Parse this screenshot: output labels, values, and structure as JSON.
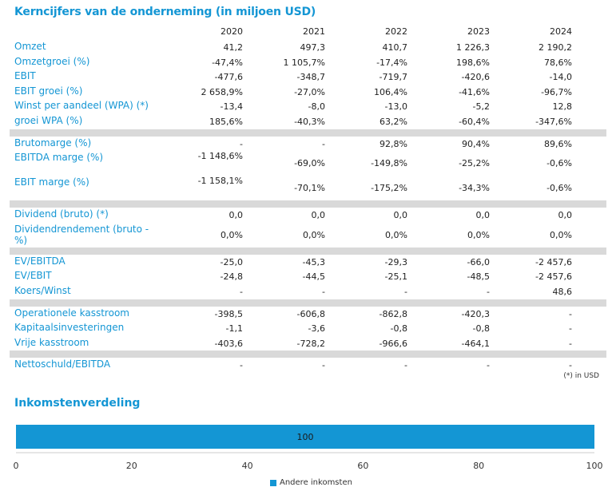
{
  "title": "Kerncijfers van de onderneming (in miljoen USD)",
  "years": [
    "2020",
    "2021",
    "2022",
    "2023",
    "2024"
  ],
  "groups": [
    {
      "rows": [
        {
          "label": "Omzet",
          "values": [
            "41,2",
            "497,3",
            "410,7",
            "1 226,3",
            "2 190,2"
          ]
        },
        {
          "label": "Omzetgroei (%)",
          "values": [
            "-47,4%",
            "1 105,7%",
            "-17,4%",
            "198,6%",
            "78,6%"
          ]
        },
        {
          "label": "EBIT",
          "values": [
            "-477,6",
            "-348,7",
            "-719,7",
            "-420,6",
            "-14,0"
          ]
        },
        {
          "label": "EBIT groei (%)",
          "values": [
            "2 658,9%",
            "-27,0%",
            "106,4%",
            "-41,6%",
            "-96,7%"
          ]
        },
        {
          "label": "Winst per aandeel (WPA) (*)",
          "values": [
            "-13,4",
            "-8,0",
            "-13,0",
            "-5,2",
            "12,8"
          ]
        },
        {
          "label": "groei WPA (%)",
          "values": [
            "185,6%",
            "-40,3%",
            "63,2%",
            "-60,4%",
            "-347,6%"
          ]
        }
      ]
    },
    {
      "rows": [
        {
          "label": "Brutomarge (%)",
          "values": [
            "-",
            "-",
            "92,8%",
            "90,4%",
            "89,6%"
          ]
        },
        {
          "label": "EBITDA marge (%)",
          "tall": true,
          "values": [
            "-1 148,6%",
            "-69,0%",
            "-149,8%",
            "-25,2%",
            "-0,6%"
          ]
        },
        {
          "label": "EBIT marge (%)",
          "tall": true,
          "values": [
            "-1 158,1%",
            "-70,1%",
            "-175,2%",
            "-34,3%",
            "-0,6%"
          ]
        }
      ]
    },
    {
      "rows": [
        {
          "label": "Dividend (bruto) (*)",
          "values": [
            "0,0",
            "0,0",
            "0,0",
            "0,0",
            "0,0"
          ]
        },
        {
          "label": "Dividendrendement (bruto - %)",
          "tall": true,
          "values": [
            "0,0%",
            "0,0%",
            "0,0%",
            "0,0%",
            "0,0%"
          ]
        }
      ]
    },
    {
      "rows": [
        {
          "label": "EV/EBITDA",
          "values": [
            "-25,0",
            "-45,3",
            "-29,3",
            "-66,0",
            "-2 457,6"
          ]
        },
        {
          "label": "EV/EBIT",
          "values": [
            "-24,8",
            "-44,5",
            "-25,1",
            "-48,5",
            "-2 457,6"
          ]
        },
        {
          "label": "Koers/Winst",
          "values": [
            "-",
            "-",
            "-",
            "-",
            "48,6"
          ]
        }
      ]
    },
    {
      "rows": [
        {
          "label": "Operationele kasstroom",
          "values": [
            "-398,5",
            "-606,8",
            "-862,8",
            "-420,3",
            "-"
          ]
        },
        {
          "label": "Kapitaalsinvesteringen",
          "values": [
            "-1,1",
            "-3,6",
            "-0,8",
            "-0,8",
            "-"
          ]
        },
        {
          "label": "Vrije kasstroom",
          "values": [
            "-403,6",
            "-728,2",
            "-966,6",
            "-464,1",
            "-"
          ]
        }
      ]
    },
    {
      "rows": [
        {
          "label": "Nettoschuld/EBITDA",
          "values": [
            "-",
            "-",
            "-",
            "-",
            "-"
          ]
        }
      ]
    }
  ],
  "note": "(*) in USD",
  "chart_title": "Inkomstenverdeling",
  "chart_data": {
    "type": "bar",
    "orientation": "horizontal",
    "stacked": true,
    "series": [
      {
        "name": "Andere inkomsten",
        "values": [
          100
        ]
      }
    ],
    "data_labels": [
      "100"
    ],
    "xlim": [
      0,
      100
    ],
    "xticks": [
      "0",
      "20",
      "40",
      "60",
      "80",
      "100"
    ],
    "legend": "bottom",
    "color": "#1496d4"
  }
}
